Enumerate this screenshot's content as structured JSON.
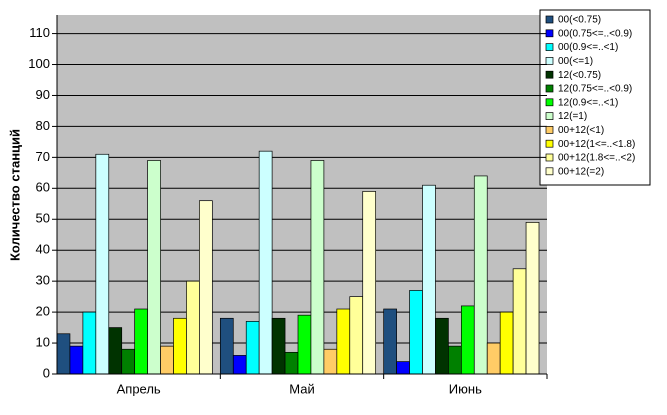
{
  "chart_data": {
    "type": "bar",
    "y_label": "Количество станций",
    "categories": [
      "Апрель",
      "Май",
      "Июнь"
    ],
    "ylim": [
      0,
      116
    ],
    "yticks": [
      0,
      10,
      20,
      30,
      40,
      50,
      60,
      70,
      80,
      90,
      100,
      110
    ],
    "series": [
      {
        "name": "00(<0.75)",
        "color": "#1f4f7f",
        "values": [
          13,
          18,
          21
        ]
      },
      {
        "name": "00(0.75<=..<0.9)",
        "color": "#0000ff",
        "values": [
          9,
          6,
          4
        ]
      },
      {
        "name": "00(0.9<=..<1)",
        "color": "#00ffff",
        "values": [
          20,
          17,
          27
        ]
      },
      {
        "name": "00(<=1)",
        "color": "#ccffff",
        "values": [
          71,
          72,
          61
        ]
      },
      {
        "name": "12(<0.75)",
        "color": "#003300",
        "values": [
          15,
          18,
          18
        ]
      },
      {
        "name": "12(0.75<=..<0.9)",
        "color": "#008000",
        "values": [
          8,
          7,
          9
        ]
      },
      {
        "name": "12(0.9<=..<1)",
        "color": "#00ff00",
        "values": [
          21,
          19,
          22
        ]
      },
      {
        "name": "12(=1)",
        "color": "#ccffcc",
        "values": [
          69,
          69,
          64
        ]
      },
      {
        "name": "00+12(<1)",
        "color": "#ffcc66",
        "values": [
          9,
          8,
          10
        ]
      },
      {
        "name": "00+12(1<=..<1.8)",
        "color": "#ffff00",
        "values": [
          18,
          21,
          20
        ]
      },
      {
        "name": "00+12(1.8<=..<2)",
        "color": "#ffff99",
        "values": [
          30,
          25,
          34
        ]
      },
      {
        "name": "00+12(=2)",
        "color": "#ffffcc",
        "values": [
          56,
          59,
          49
        ]
      }
    ]
  }
}
